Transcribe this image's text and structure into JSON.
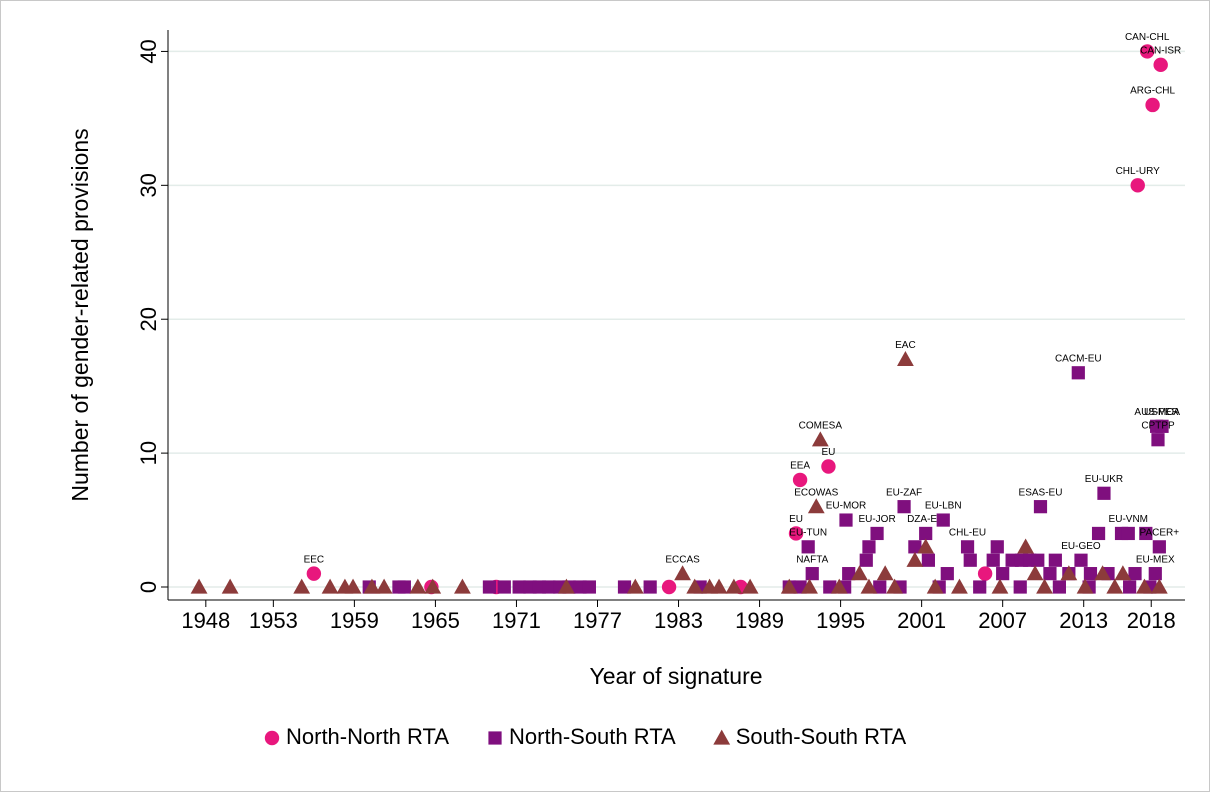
{
  "chart_data": {
    "type": "scatter",
    "x_label": "Year of signature",
    "y_label": "Number of gender-related provisions",
    "xlim": [
      1945.2,
      2020.5
    ],
    "ylim": [
      -0.97,
      41.6
    ],
    "xticks": [
      1948,
      1953,
      1959,
      1965,
      1971,
      1977,
      1983,
      1989,
      1995,
      2001,
      2007,
      2013,
      2018
    ],
    "yticks": [
      0,
      10,
      20,
      30,
      40
    ],
    "grid": true,
    "legend": "bottom",
    "series": [
      {
        "name": "North-North RTA",
        "color": "#e8177d",
        "marker": "circle",
        "x": [
          1956,
          1964.7,
          1969.5,
          1982.3,
          1987.6,
          1991.7,
          1992,
          1994.1,
          2005.7,
          2017,
          2018.1,
          2017.7,
          2018.7
        ],
        "values": [
          1,
          0,
          0,
          0,
          0,
          4,
          8,
          9,
          1,
          30,
          36,
          40,
          39
        ],
        "labels": [
          "EEC",
          null,
          null,
          null,
          null,
          "EU",
          "EEA",
          "EU",
          null,
          "CHL-URY",
          "ARG-CHL",
          "CAN-CHL",
          "CAN-ISR"
        ]
      },
      {
        "name": "North-South RTA",
        "color": "#7f0f7e",
        "marker": "square",
        "x": [
          1960.1,
          1962.3,
          1962.7,
          1969,
          1970.1,
          1971.2,
          1972,
          1972.7,
          1973.4,
          1974.2,
          1974.9,
          1975.7,
          1976.4,
          1979,
          1980.9,
          1984.6,
          1991.2,
          1992,
          1994.2,
          1995.3,
          1997.9,
          1999.4,
          2002.3,
          2005.3,
          2008.3,
          2011.2,
          2013.4,
          2016.4,
          2017.9,
          1995.6,
          1996.9,
          1997.1,
          2000.5,
          2001.5,
          2002.9,
          2004.6,
          2006.3,
          2006.6,
          2007,
          2007.7,
          2008.4,
          2009,
          2009.6,
          2010.5,
          2010.9,
          2011.9,
          2013.5,
          2014.1,
          2014.8,
          2015.8,
          2016.8,
          2017.6,
          1992.6,
          1992.9,
          1995.4,
          1997.7,
          1999.7,
          2001.3,
          2002.6,
          2004.4,
          2009.8,
          2012.6,
          2012.8,
          2014.5,
          2016.3,
          2018.3,
          2018.4,
          2018.8,
          2018.5,
          2018.6
        ],
        "values": [
          0,
          0,
          0,
          0,
          0,
          0,
          0,
          0,
          0,
          0,
          0,
          0,
          0,
          0,
          0,
          0,
          0,
          0,
          0,
          0,
          0,
          0,
          0,
          0,
          0,
          0,
          0,
          0,
          0,
          1,
          2,
          3,
          3,
          2,
          1,
          2,
          2,
          3,
          1,
          2,
          2,
          2,
          2,
          1,
          2,
          1,
          1,
          4,
          1,
          4,
          1,
          4,
          3,
          1,
          5,
          4,
          6,
          4,
          5,
          3,
          6,
          16,
          2,
          7,
          4,
          1,
          12,
          12,
          11,
          3
        ],
        "labels": [
          null,
          null,
          null,
          null,
          null,
          null,
          null,
          null,
          null,
          null,
          null,
          null,
          null,
          null,
          null,
          null,
          null,
          null,
          null,
          null,
          null,
          null,
          null,
          null,
          null,
          null,
          null,
          null,
          null,
          null,
          null,
          null,
          null,
          null,
          null,
          null,
          null,
          null,
          null,
          null,
          null,
          null,
          null,
          null,
          null,
          null,
          null,
          null,
          null,
          null,
          null,
          null,
          "EU-TUN",
          "NAFTA",
          "EU-MOR",
          "EU-JOR",
          "EU-ZAF",
          "DZA-EU",
          "EU-LBN",
          "CHL-EU",
          "ESAS-EU",
          "CACM-EU",
          "EU-GEO",
          "EU-UKR",
          "EU-VNM",
          "EU-MEX",
          "AUS-PER",
          "USMCA",
          "CPTPP",
          "PACER+"
        ]
      },
      {
        "name": "South-South RTA",
        "color": "#8c3b3b",
        "marker": "triangle",
        "x": [
          1947.5,
          1949.8,
          1955.1,
          1957.2,
          1958.3,
          1958.9,
          1960.3,
          1961.2,
          1963.7,
          1964.8,
          1967,
          1974.7,
          1979.8,
          1984.2,
          1985.3,
          1986,
          1987.1,
          1988.3,
          1991.2,
          1992.7,
          1994.9,
          1997.1,
          1999,
          2002,
          2003.8,
          2006.8,
          2010.1,
          2013.1,
          2015.3,
          2017.5,
          2018.6,
          1983.3,
          1993.2,
          1993.5,
          1999.8,
          1996.4,
          1998.3,
          2000.5,
          2001.3,
          2008.7,
          2009.4,
          2011.9,
          2014.4,
          2015.9
        ],
        "values": [
          0,
          0,
          0,
          0,
          0,
          0,
          0,
          0,
          0,
          0,
          0,
          0,
          0,
          0,
          0,
          0,
          0,
          0,
          0,
          0,
          0,
          0,
          0,
          0,
          0,
          0,
          0,
          0,
          0,
          0,
          0,
          1,
          6,
          11,
          17,
          1,
          1,
          2,
          3,
          3,
          1,
          1,
          1,
          1
        ],
        "labels": [
          null,
          null,
          null,
          null,
          null,
          null,
          null,
          null,
          null,
          null,
          null,
          null,
          null,
          null,
          null,
          null,
          null,
          null,
          null,
          null,
          null,
          null,
          null,
          null,
          null,
          null,
          null,
          null,
          null,
          null,
          null,
          "ECCAS",
          "ECOWAS",
          "COMESA",
          "EAC",
          null,
          null,
          null,
          null,
          null,
          null,
          null,
          null,
          null
        ]
      }
    ]
  }
}
